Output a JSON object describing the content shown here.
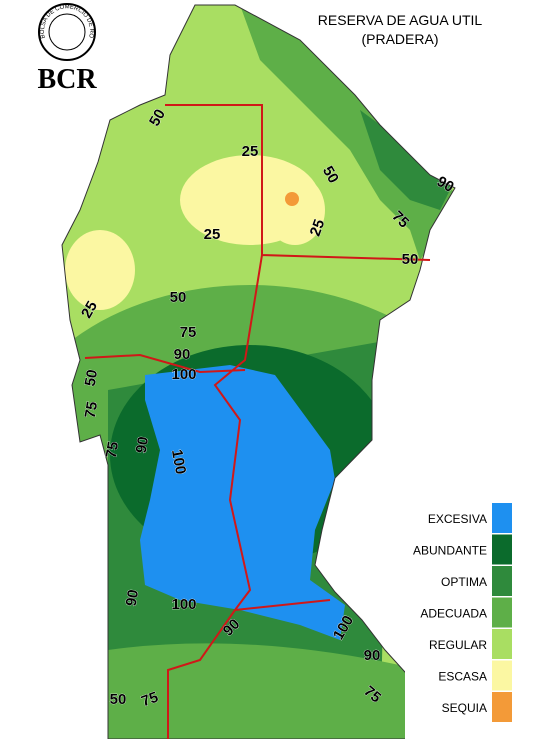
{
  "header": {
    "logo_text": "BOLSA DE COMERCIO DE ROSARIO",
    "logo_abbr": "BCR",
    "title": "RESERVA DE AGUA UTIL",
    "subtitle": "(PRADERA)"
  },
  "legend": [
    {
      "label": "EXCESIVA",
      "color": "#1e90f0"
    },
    {
      "label": "ABUNDANTE",
      "color": "#0b6b2c"
    },
    {
      "label": "OPTIMA",
      "color": "#2f8a3c"
    },
    {
      "label": "ADECUADA",
      "color": "#5eaf48"
    },
    {
      "label": "REGULAR",
      "color": "#a9de62"
    },
    {
      "label": "ESCASA",
      "color": "#fbf7a2"
    },
    {
      "label": "SEQUIA",
      "color": "#f39a38"
    }
  ],
  "contour_labels": [
    50,
    25,
    50,
    90,
    25,
    25,
    75,
    50,
    50,
    25,
    75,
    90,
    100,
    50,
    75,
    90,
    75,
    100,
    90,
    100,
    90,
    100,
    90,
    75,
    75,
    50
  ]
}
